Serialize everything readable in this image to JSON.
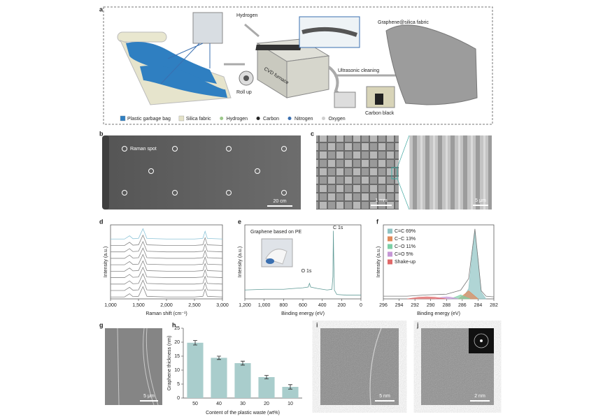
{
  "figure": {
    "panel_labels": [
      "a",
      "b",
      "c",
      "d",
      "e",
      "f",
      "g",
      "h",
      "i",
      "j"
    ],
    "schematic": {
      "hydrogen": "Hydrogen",
      "product": "Graphene@silica fabric",
      "cleaning": "Ultrasonic cleaning",
      "roll_up": "Roll up",
      "furnace": "CVD furnace",
      "carbon_black": "Carbon black",
      "legend": [
        {
          "label": "Plastic garbage bag",
          "color": "#2f7fc1",
          "marker": "square"
        },
        {
          "label": "Silica fabric",
          "color": "#e4e2c8",
          "marker": "square"
        },
        {
          "label": "Hydrogen",
          "color": "#9cc88a",
          "marker": "dot"
        },
        {
          "label": "Carbon",
          "color": "#222222",
          "marker": "dot"
        },
        {
          "label": "Nitrogen",
          "color": "#3a6fb0",
          "marker": "dot"
        },
        {
          "label": "Oxygen",
          "color": "#cfcfcf",
          "marker": "dot"
        }
      ]
    },
    "photo_b": {
      "spot": "Raman spot",
      "scale": "20 cm"
    },
    "sem_c": {
      "scale_left": "1 mm",
      "scale_right": "5 μm"
    },
    "sem_g": {
      "scale": "5 μm"
    },
    "tem_i": {
      "scale": "5 nm"
    },
    "tem_j": {
      "scale": "2 nm"
    }
  },
  "chart_data": [
    {
      "type": "line",
      "xlabel": "Raman shift (cm⁻¹)",
      "ylabel": "Intensity (a.u.)",
      "xlim": [
        1000,
        3000
      ],
      "ylim": [
        0,
        11.5
      ],
      "xticks": [
        {
          "value": 1000,
          "label": "1,000"
        },
        {
          "value": 1500,
          "label": "1,500"
        },
        {
          "value": 2000,
          "label": "2,000"
        },
        {
          "value": 2500,
          "label": "2,500"
        },
        {
          "value": 3000,
          "label": "3,000"
        }
      ],
      "x": [
        1000,
        1250,
        1340,
        1400,
        1500,
        1580,
        1650,
        2000,
        2500,
        2650,
        2690,
        2730,
        3000
      ],
      "series": [
        {
          "color": "#888888",
          "values": [
            0.3,
            0.3,
            0.8,
            0.35,
            0.4,
            1.9,
            0.4,
            0.3,
            0.3,
            0.4,
            1.5,
            0.4,
            0.3
          ]
        },
        {
          "color": "#888888",
          "values": [
            1.3,
            1.3,
            1.8,
            1.35,
            1.4,
            2.9,
            1.4,
            1.3,
            1.3,
            1.4,
            2.5,
            1.4,
            1.3
          ]
        },
        {
          "color": "#888888",
          "values": [
            2.3,
            2.3,
            2.8,
            2.35,
            2.4,
            3.9,
            2.4,
            2.3,
            2.3,
            2.4,
            3.5,
            2.4,
            2.3
          ]
        },
        {
          "color": "#888888",
          "values": [
            3.3,
            3.3,
            3.8,
            3.35,
            3.4,
            4.9,
            3.4,
            3.3,
            3.3,
            3.4,
            4.5,
            3.4,
            3.3
          ]
        },
        {
          "color": "#888888",
          "values": [
            4.3,
            4.3,
            4.8,
            4.35,
            4.4,
            5.9,
            4.4,
            4.3,
            4.3,
            4.4,
            5.5,
            4.4,
            4.3
          ]
        },
        {
          "color": "#888888",
          "values": [
            5.3,
            5.3,
            5.8,
            5.35,
            5.4,
            6.9,
            5.4,
            5.3,
            5.3,
            5.4,
            6.5,
            5.4,
            5.3
          ]
        },
        {
          "color": "#888888",
          "values": [
            6.3,
            6.3,
            6.8,
            6.35,
            6.4,
            7.9,
            6.4,
            6.3,
            6.3,
            6.4,
            7.5,
            6.4,
            6.3
          ]
        },
        {
          "color": "#888888",
          "values": [
            7.3,
            7.3,
            7.8,
            7.35,
            7.4,
            8.9,
            7.4,
            7.3,
            7.3,
            7.4,
            8.5,
            7.4,
            7.3
          ]
        },
        {
          "color": "#888888",
          "values": [
            8.3,
            8.3,
            8.8,
            8.35,
            8.4,
            9.9,
            8.4,
            8.3,
            8.3,
            8.4,
            9.5,
            8.4,
            8.3
          ]
        },
        {
          "color": "#8cc4d8",
          "values": [
            9.3,
            9.3,
            9.8,
            9.35,
            9.4,
            10.9,
            9.4,
            9.3,
            9.3,
            9.4,
            10.5,
            9.4,
            9.3
          ]
        }
      ]
    },
    {
      "type": "line",
      "xlabel": "Binding energy (eV)",
      "ylabel": "Intensity (a.u.)",
      "xlim": [
        1200,
        0
      ],
      "ylim": [
        0,
        10
      ],
      "xticks": [
        {
          "value": 1200,
          "label": "1,200"
        },
        {
          "value": 1000,
          "label": "1,000"
        },
        800,
        600,
        400,
        200,
        0
      ],
      "annotations": [
        "Graphene based on PE",
        "C 1s",
        "O 1s"
      ],
      "x": [
        1200,
        1000,
        800,
        700,
        600,
        545,
        532,
        520,
        450,
        350,
        300,
        290,
        285,
        282,
        275,
        250,
        150,
        0
      ],
      "series": [
        {
          "color": "#5f9a96",
          "values": [
            1.2,
            1.3,
            1.3,
            1.4,
            1.5,
            1.6,
            2.1,
            1.6,
            1.4,
            1.2,
            1.3,
            3,
            9.2,
            6,
            1.2,
            0.6,
            0.5,
            0.5
          ]
        }
      ]
    },
    {
      "type": "area",
      "xlabel": "Binding energy (eV)",
      "ylabel": "Intensity (a.u.)",
      "xlim": [
        296,
        282
      ],
      "ylim": [
        0,
        11
      ],
      "xticks": [
        296,
        294,
        292,
        290,
        288,
        286,
        284,
        282
      ],
      "envelope": {
        "color": "#777777",
        "x": [
          296,
          293,
          290.5,
          288,
          286.2,
          285.2,
          284.4,
          283.6,
          283,
          282
        ],
        "values": [
          0.4,
          0.4,
          0.6,
          0.7,
          1.3,
          3,
          10.4,
          1.2,
          0.4,
          0.3
        ]
      },
      "series": [
        {
          "name": "C=C 69%",
          "color": "#8fc3c3",
          "x": [
            286,
            285.2,
            284.8,
            284.4,
            284,
            283.6,
            283
          ],
          "values": [
            0,
            1.5,
            6,
            10,
            6,
            1,
            0
          ]
        },
        {
          "name": "C−C 13%",
          "color": "#e0895a",
          "x": [
            286.5,
            285.6,
            285.2,
            284.8,
            284
          ],
          "values": [
            0,
            0.8,
            1.2,
            0.8,
            0
          ]
        },
        {
          "name": "C−O 11%",
          "color": "#7ccfa6",
          "x": [
            287.5,
            286.6,
            286.2,
            285.8,
            285
          ],
          "values": [
            0,
            0.4,
            0.6,
            0.4,
            0
          ]
        },
        {
          "name": "C=O 5%",
          "color": "#c697d6",
          "x": [
            289.5,
            288.5,
            288,
            287.5,
            286.5
          ],
          "values": [
            0,
            0.25,
            0.3,
            0.25,
            0
          ]
        },
        {
          "name": "Shake-up",
          "color": "#e06868",
          "x": [
            293,
            291.5,
            290.5,
            289.5,
            288
          ],
          "values": [
            0,
            0.25,
            0.3,
            0.25,
            0
          ]
        }
      ]
    },
    {
      "type": "bar",
      "xlabel": "Content of the plastic waste (wt%)",
      "ylabel": "Graphene thickness (nm)",
      "categories": [
        "50",
        "40",
        "30",
        "20",
        "10"
      ],
      "values": [
        19.8,
        14.4,
        12.5,
        7.5,
        4.0
      ],
      "errors": [
        0.8,
        0.6,
        0.7,
        0.6,
        0.8
      ],
      "color": "#a9cdcc",
      "ylim": [
        0,
        25
      ],
      "yticks": [
        0,
        5,
        10,
        15,
        20,
        25
      ]
    }
  ]
}
